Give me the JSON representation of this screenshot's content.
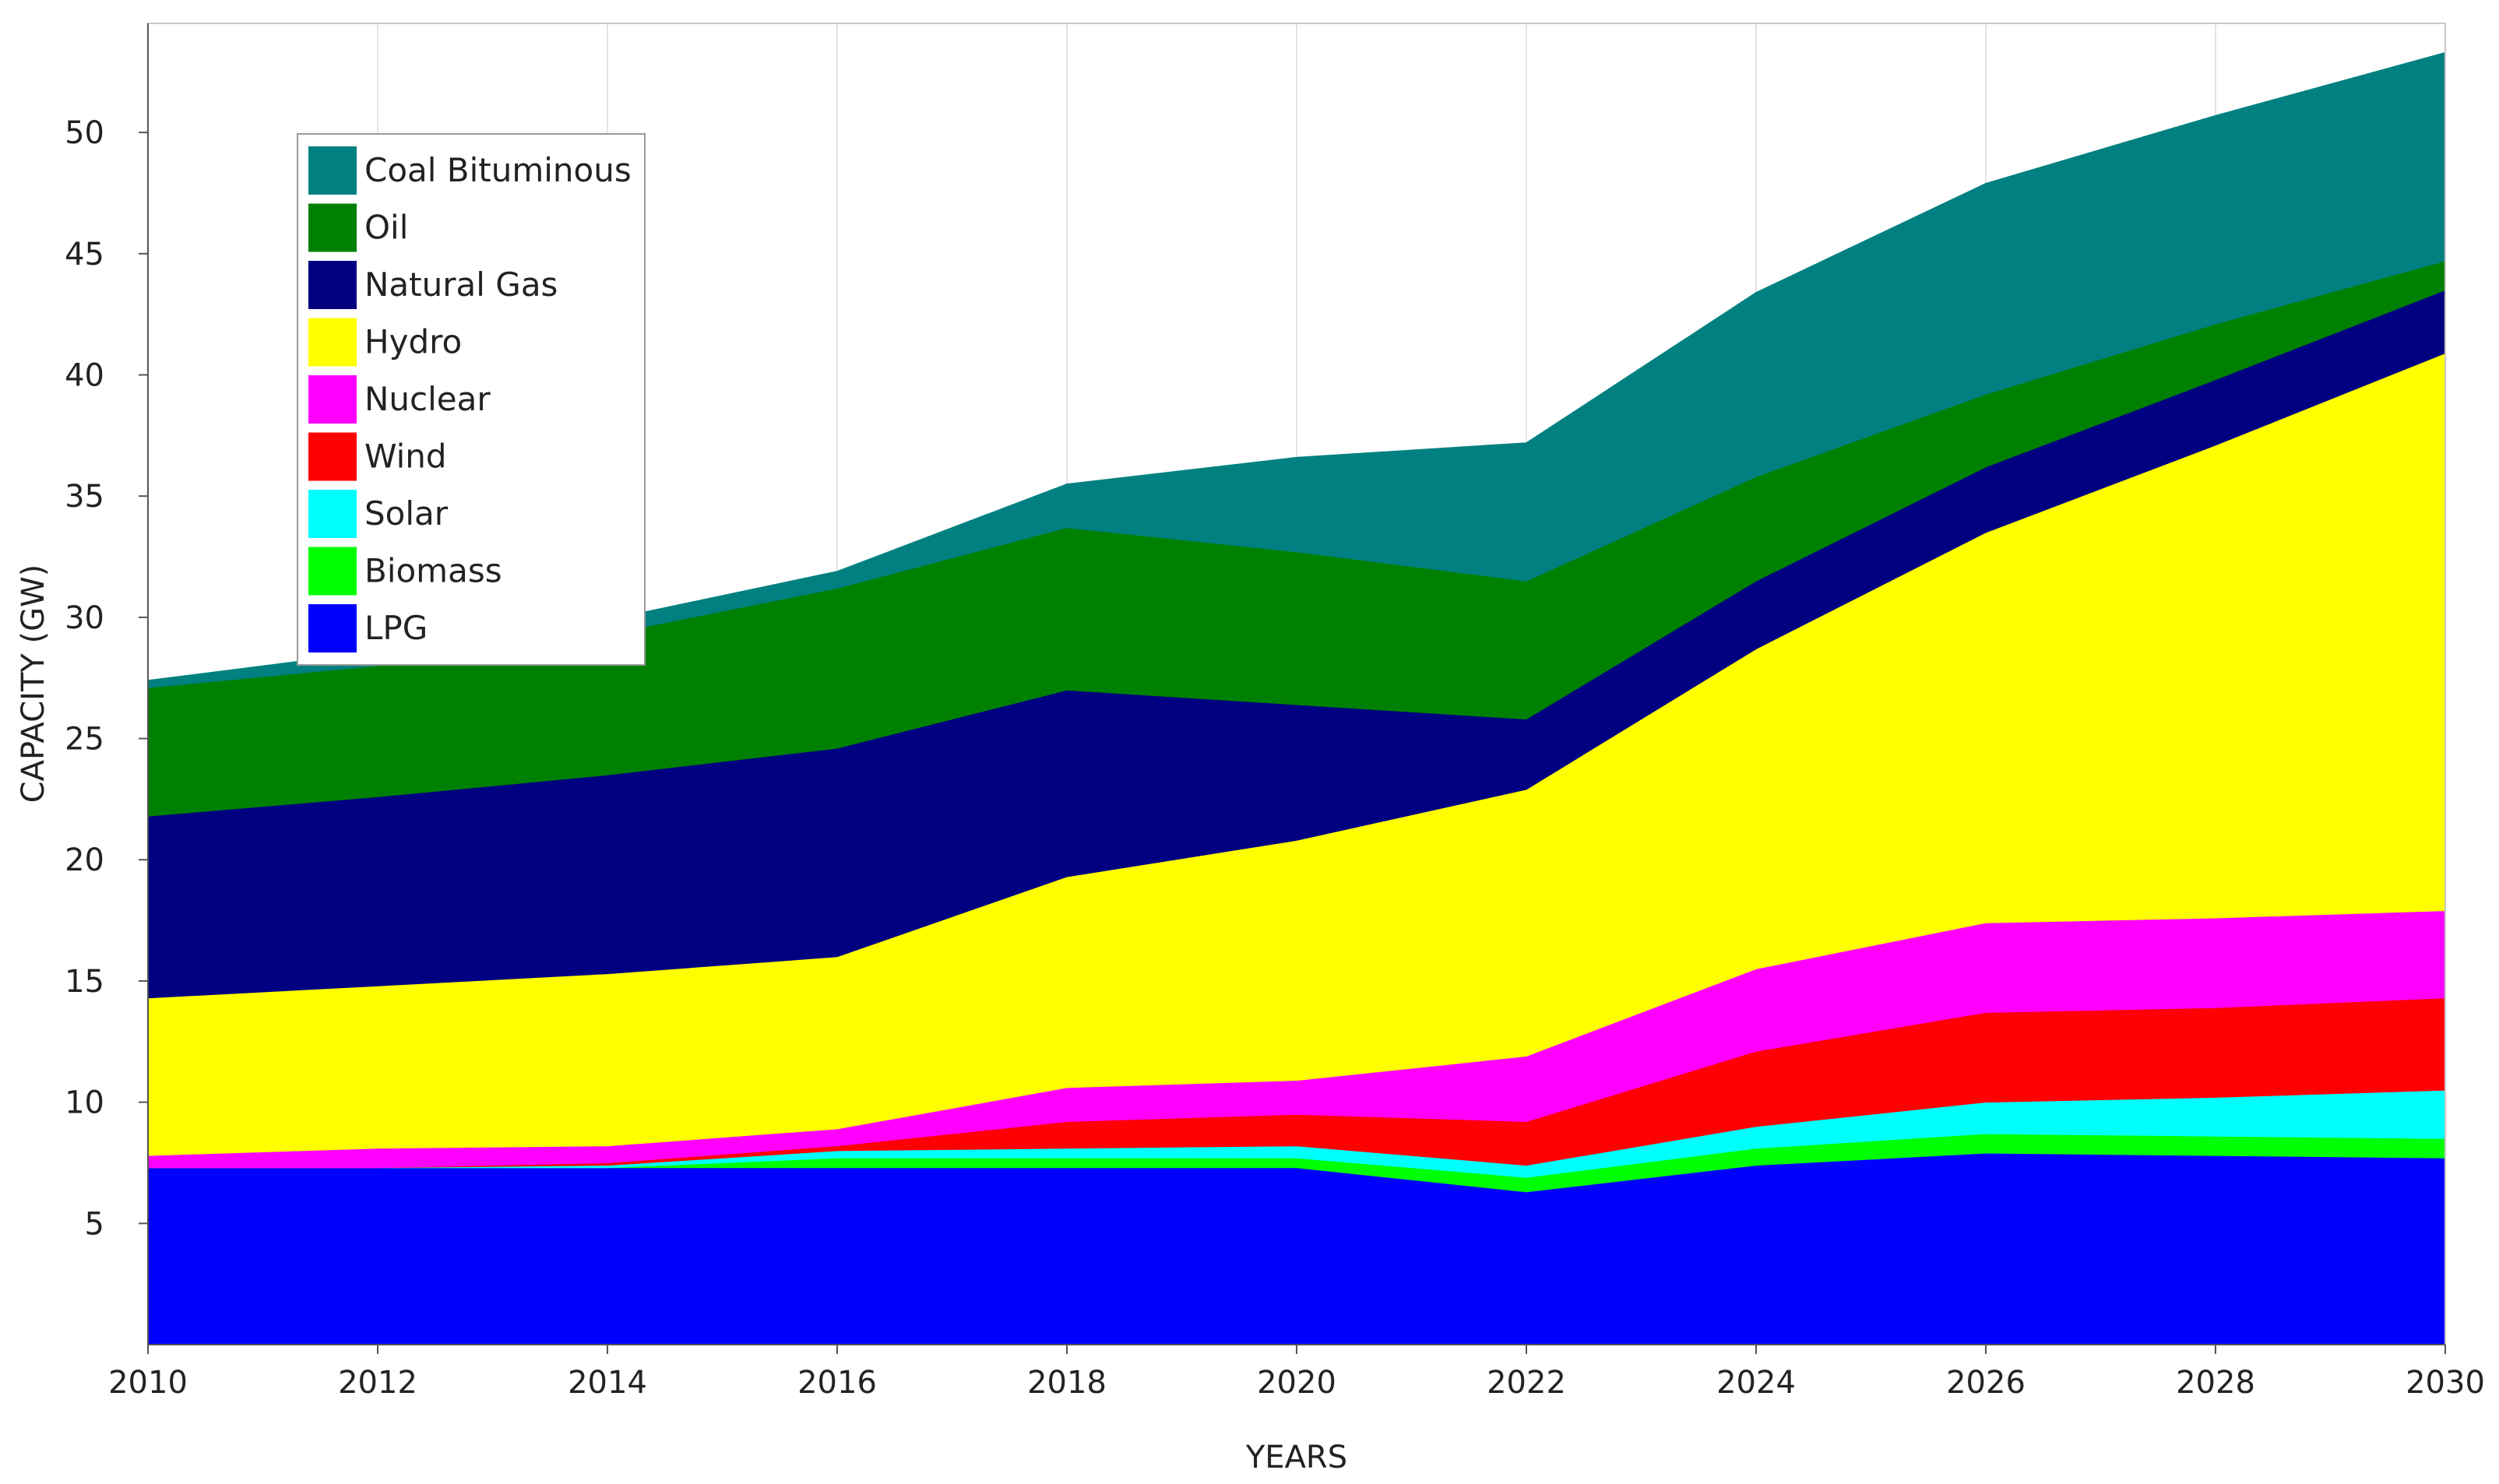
{
  "chart_data": {
    "type": "area",
    "stacked": true,
    "xlabel": "YEARS",
    "ylabel": "CAPACITY (GW)",
    "xlim": [
      2010,
      2030
    ],
    "ylim": [
      0,
      54.5
    ],
    "x_ticks": [
      "2010",
      "2012",
      "2014",
      "2016",
      "2018",
      "2020",
      "2022",
      "2024",
      "2026",
      "2028",
      "2030"
    ],
    "y_ticks": [
      "5",
      "10",
      "15",
      "20",
      "25",
      "30",
      "35",
      "40",
      "45",
      "50"
    ],
    "grid": "vertical",
    "legend_position": "top-left",
    "x": [
      2010,
      2012,
      2014,
      2016,
      2018,
      2020,
      2022,
      2024,
      2026,
      2028,
      2030
    ],
    "series": [
      {
        "name": "LPG",
        "color": "#0000FF",
        "values": [
          7.3,
          7.3,
          7.3,
          7.3,
          7.3,
          7.3,
          6.3,
          7.4,
          7.9,
          7.8,
          7.7
        ]
      },
      {
        "name": "Biomass",
        "color": "#00FF00",
        "values": [
          0.0,
          0.0,
          0.0,
          0.4,
          0.4,
          0.4,
          0.6,
          0.7,
          0.8,
          0.8,
          0.8
        ]
      },
      {
        "name": "Solar",
        "color": "#00FFFF",
        "values": [
          0.0,
          0.0,
          0.1,
          0.3,
          0.4,
          0.5,
          0.5,
          0.9,
          1.3,
          1.6,
          2.0
        ]
      },
      {
        "name": "Wind",
        "color": "#FF0000",
        "values": [
          0.0,
          0.0,
          0.1,
          0.2,
          1.1,
          1.3,
          1.8,
          3.1,
          3.7,
          3.7,
          3.8
        ]
      },
      {
        "name": "Nuclear",
        "color": "#FF00FF",
        "values": [
          0.5,
          0.8,
          0.7,
          0.7,
          1.4,
          1.4,
          2.7,
          3.4,
          3.7,
          3.7,
          3.6
        ]
      },
      {
        "name": "Hydro",
        "color": "#FFFF00",
        "values": [
          6.5,
          6.7,
          7.1,
          7.1,
          8.7,
          9.9,
          11.0,
          13.2,
          16.1,
          19.5,
          23.0
        ]
      },
      {
        "name": "Natural Gas",
        "color": "#000080",
        "values": [
          7.5,
          7.8,
          8.2,
          8.6,
          7.7,
          5.6,
          2.9,
          2.8,
          2.7,
          2.7,
          2.6
        ]
      },
      {
        "name": "Oil",
        "color": "#008000",
        "values": [
          5.3,
          5.4,
          5.8,
          6.6,
          6.7,
          6.3,
          5.7,
          4.3,
          3.0,
          2.3,
          1.2
        ]
      },
      {
        "name": "Coal Bituminous",
        "color": "#008080",
        "values": [
          0.3,
          0.6,
          0.6,
          0.7,
          1.8,
          3.9,
          5.7,
          7.6,
          8.7,
          8.6,
          8.6
        ]
      }
    ],
    "legend_order": [
      "Coal Bituminous",
      "Oil",
      "Natural Gas",
      "Hydro",
      "Nuclear",
      "Wind",
      "Solar",
      "Biomass",
      "LPG"
    ]
  }
}
